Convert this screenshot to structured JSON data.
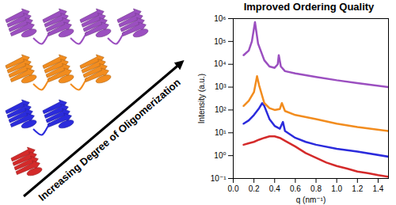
{
  "chart_data": {
    "type": "line",
    "title": "Improved Ordering Quality",
    "x_label": "q (nm⁻¹)",
    "y_label": "Intensity (a.u.)",
    "log": "y",
    "grid": false,
    "xlim": [
      0,
      1.5
    ],
    "xticks": [
      {
        "value": 0,
        "label": "0.0"
      },
      0.2,
      0.4,
      0.6,
      0.8,
      {
        "value": 1,
        "label": "1.0"
      },
      1.2,
      1.4
    ],
    "ylim": [
      0.1,
      1000000
    ],
    "yticks": [
      {
        "value": 0.1,
        "label": "10⁻¹"
      },
      {
        "value": 1,
        "label": "10⁰"
      },
      {
        "value": 10,
        "label": "10¹"
      },
      {
        "value": 100,
        "label": "10²"
      },
      {
        "value": 1000,
        "label": "10³"
      },
      {
        "value": 10000,
        "label": "10⁴"
      },
      {
        "value": 100000,
        "label": "10⁵"
      },
      {
        "value": 1000000,
        "label": "10⁶"
      }
    ],
    "series": [
      {
        "color": "#d42a2a",
        "x": [
          0.1,
          0.15,
          0.2,
          0.25,
          0.3,
          0.35,
          0.4,
          0.45,
          0.5,
          0.6,
          0.7,
          0.8,
          0.9,
          1.0,
          1.1,
          1.2,
          1.3,
          1.4,
          1.5
        ],
        "values": [
          3,
          3.5,
          4,
          5,
          6,
          7,
          7,
          6,
          4.5,
          2.5,
          1.3,
          0.8,
          0.5,
          0.35,
          0.27,
          0.2,
          0.17,
          0.14,
          0.12
        ]
      },
      {
        "color": "#2b2bdc",
        "x": [
          0.1,
          0.15,
          0.2,
          0.25,
          0.28,
          0.3,
          0.35,
          0.4,
          0.45,
          0.48,
          0.5,
          0.6,
          0.7,
          0.8,
          1.0,
          1.2,
          1.5
        ],
        "values": [
          25,
          35,
          60,
          120,
          200,
          150,
          40,
          20,
          15,
          30,
          12,
          6,
          4,
          3,
          2,
          1.5,
          0.9
        ]
      },
      {
        "color": "#f28c1e",
        "x": [
          0.1,
          0.15,
          0.2,
          0.23,
          0.25,
          0.3,
          0.35,
          0.4,
          0.45,
          0.47,
          0.5,
          0.6,
          0.8,
          1.0,
          1.2,
          1.5
        ],
        "values": [
          150,
          250,
          600,
          3000,
          1200,
          200,
          120,
          100,
          110,
          200,
          90,
          60,
          40,
          25,
          18,
          12
        ]
      },
      {
        "color": "#9b4fc0",
        "x": [
          0.1,
          0.15,
          0.18,
          0.21,
          0.24,
          0.3,
          0.35,
          0.4,
          0.43,
          0.44,
          0.46,
          0.5,
          0.6,
          0.8,
          1.0,
          1.2,
          1.5
        ],
        "values": [
          25000,
          40000,
          100000,
          700000,
          80000,
          15000,
          8000,
          7000,
          10000,
          25000,
          8000,
          5000,
          4000,
          2800,
          2000,
          1500,
          1000
        ]
      }
    ]
  },
  "illustration": {
    "label": "Increasing Degree of Oligomerization",
    "oligomers": [
      {
        "count": 1,
        "color": "#d42a2a"
      },
      {
        "count": 2,
        "color": "#2b2bdc"
      },
      {
        "count": 3,
        "color": "#f28c1e"
      },
      {
        "count": 4,
        "color": "#9b4fc0"
      }
    ]
  }
}
